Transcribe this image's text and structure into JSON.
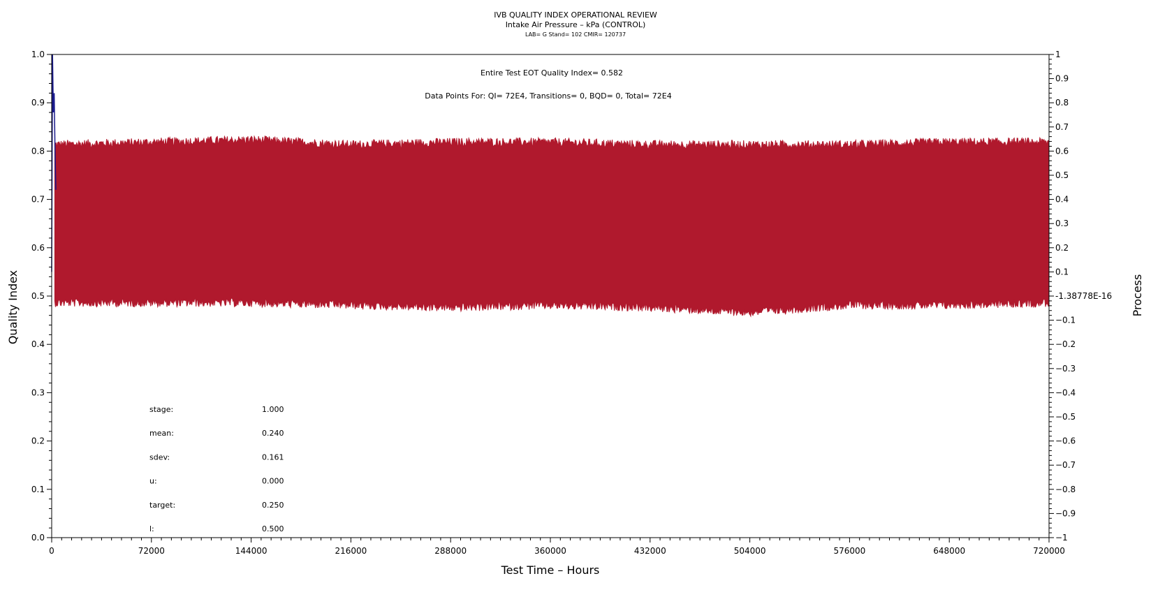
{
  "chart_data": {
    "type": "line",
    "title": "IVB QUALITY INDEX OPERATIONAL REVIEW",
    "subtitle": "Intake Air Pressure – kPa (CONTROL)",
    "subsubtitle": "LAB= G Stand= 102 CMIR= 120737",
    "xlabel": "Test Time – Hours",
    "ylabel": "Quality Index",
    "y2label": "Process",
    "xlim": [
      0,
      720000
    ],
    "ylim": [
      0,
      1
    ],
    "y2lim": [
      -1,
      1
    ],
    "x_ticks": [
      "0",
      "72000",
      "144000",
      "216000",
      "288000",
      "360000",
      "432000",
      "504000",
      "576000",
      "648000",
      "720000"
    ],
    "x_tick_values": [
      0,
      72000,
      144000,
      216000,
      288000,
      360000,
      432000,
      504000,
      576000,
      648000,
      720000
    ],
    "y_ticks": [
      "0.0",
      "0.1",
      "0.2",
      "0.3",
      "0.4",
      "0.5",
      "0.6",
      "0.7",
      "0.8",
      "0.9",
      "1.0"
    ],
    "y_tick_values": [
      0,
      0.1,
      0.2,
      0.3,
      0.4,
      0.5,
      0.6,
      0.7,
      0.8,
      0.9,
      1.0
    ],
    "y2_ticks": [
      "1",
      "0.9",
      "0.8",
      "0.7",
      "0.6",
      "0.5",
      "0.4",
      "0.3",
      "0.2",
      "0.1",
      "-1.38778E-16",
      "−0.1",
      "−0.2",
      "−0.3",
      "−0.4",
      "−0.5",
      "−0.6",
      "−0.7",
      "−0.8",
      "−0.9",
      "−1"
    ],
    "y2_tick_values": [
      1,
      0.9,
      0.8,
      0.7,
      0.6,
      0.5,
      0.4,
      0.3,
      0.2,
      0.1,
      0,
      -0.1,
      -0.2,
      -0.3,
      -0.4,
      -0.5,
      -0.6,
      -0.7,
      -0.8,
      -0.9,
      -1
    ],
    "annotations": {
      "eot": "Entire Test EOT Quality Index=   0.582",
      "points": "Data Points For: QI=  72E4, Transitions=     0, BQD=     0, Total=  72E4"
    },
    "stats": [
      {
        "label": "stage:",
        "value": "1.000"
      },
      {
        "label": "mean:",
        "value": "0.240"
      },
      {
        "label": "sdev:",
        "value": "0.161"
      },
      {
        "label": "u:",
        "value": "0.000"
      },
      {
        "label": "target:",
        "value": "0.250"
      },
      {
        "label": "l:",
        "value": "0.500"
      }
    ],
    "series": [
      {
        "color": "#b0192d",
        "band": {
          "x": [
            0,
            72000,
            144000,
            216000,
            288000,
            360000,
            432000,
            504000,
            576000,
            648000,
            720000
          ],
          "upper": [
            0.81,
            0.815,
            0.82,
            0.81,
            0.815,
            0.815,
            0.81,
            0.81,
            0.81,
            0.815,
            0.815
          ],
          "lower": [
            0.49,
            0.49,
            0.49,
            0.485,
            0.48,
            0.485,
            0.48,
            0.47,
            0.485,
            0.485,
            0.49
          ]
        }
      },
      {
        "color": "#1a1a8c",
        "x": [
          0,
          600,
          1200,
          1800,
          2400,
          3000
        ],
        "y": [
          0.55,
          1.0,
          0.88,
          0.92,
          0.8,
          0.72
        ]
      }
    ],
    "grid": false
  }
}
